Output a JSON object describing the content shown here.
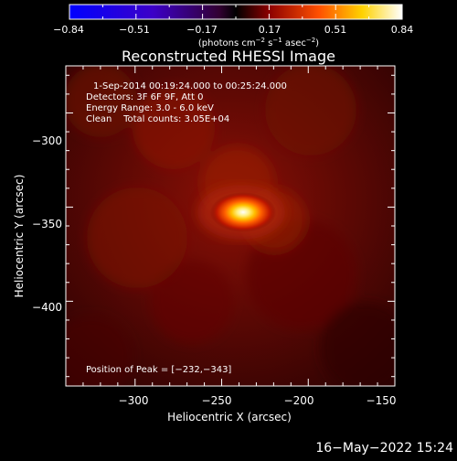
{
  "colorbar": {
    "ticks": [
      "−0.84",
      "−0.51",
      "−0.17",
      "0.17",
      "0.51",
      "0.84"
    ],
    "unit_prefix": "(photons cm",
    "unit_sup1": "−2",
    "unit_mid1": " s",
    "unit_sup2": "−1",
    "unit_mid2": " asec",
    "unit_sup3": "−2",
    "unit_suffix": ")"
  },
  "image": {
    "title": "Reconstructed RHESSI Image",
    "xlabel": "Heliocentric X (arcsec)",
    "ylabel": "Heliocentric Y (arcsec)",
    "info_lines": [
      "1-Sep-2014 00:19:24.000 to 00:25:24.000",
      "Detectors: 3F 6F 9F, Att 0",
      "Energy Range: 3.0 - 6.0 keV",
      "Clean    Total counts: 3.05E+04"
    ],
    "peak_label": "Position of Peak = [−232,−343]",
    "x_ticks": [
      "−300",
      "−250",
      "−200",
      "−150"
    ],
    "y_ticks": [
      "−300",
      "−350",
      "−400"
    ]
  },
  "footer": {
    "timestamp": "16−May−2022 15:24"
  },
  "chart_data": {
    "type": "heatmap",
    "title": "Reconstructed RHESSI Image",
    "xlabel": "Heliocentric X (arcsec)",
    "ylabel": "Heliocentric Y (arcsec)",
    "xlim": [
      -340,
      -150
    ],
    "ylim": [
      -445,
      -275
    ],
    "peak": {
      "x": -232,
      "y": -343
    },
    "colorbar_range": [
      -0.84,
      0.84
    ],
    "colormap": "blue-purple-red-yellow-white",
    "colors": {
      "background": "#000000",
      "text": "#ffffff"
    }
  }
}
